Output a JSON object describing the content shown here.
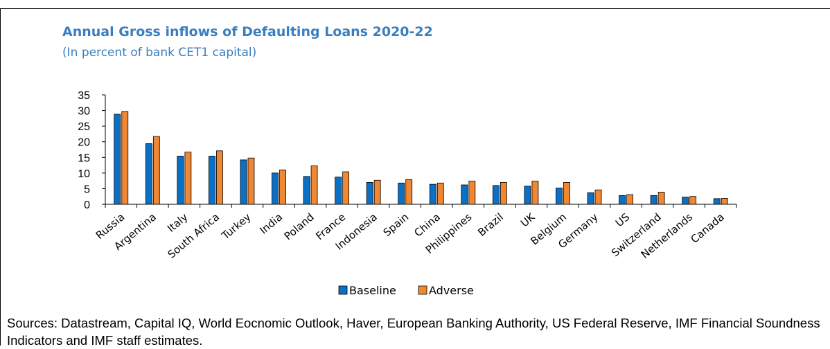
{
  "title": "Annual Gross inflows of Defaulting Loans 2020-22",
  "subtitle": "(In percent of bank CET1 capital)",
  "footnote": "Sources: Datastream, Capital IQ, World Eocnomic Outlook, Haver, European Banking Authority, US Federal Reserve, IMF Financial Soundness Indicators and IMF staff estimates.",
  "colors": {
    "baseline": "#0b6fc4",
    "adverse": "#ef8733",
    "title": "#3a7ebf"
  },
  "chart_data": {
    "type": "bar",
    "title": "Annual Gross inflows of Defaulting Loans 2020-22",
    "subtitle": "(In percent of bank CET1 capital)",
    "xlabel": "",
    "ylabel": "",
    "ylim": [
      0,
      35
    ],
    "yticks": [
      0,
      5,
      10,
      15,
      20,
      25,
      30,
      35
    ],
    "grid": false,
    "legend_position": "bottom-center",
    "categories": [
      "Russia",
      "Argentina",
      "Italy",
      "South Africa",
      "Turkey",
      "India",
      "Poland",
      "France",
      "Indonesia",
      "Spain",
      "China",
      "Philippines",
      "Brazil",
      "UK",
      "Belgium",
      "Germany",
      "US",
      "Switzerland",
      "Netherlands",
      "Canada"
    ],
    "series": [
      {
        "name": "Baseline",
        "color": "#0b6fc4",
        "values": [
          28.8,
          19.4,
          15.4,
          15.4,
          14.2,
          10.0,
          8.9,
          8.7,
          7.0,
          6.8,
          6.4,
          6.2,
          6.0,
          5.8,
          5.2,
          3.7,
          2.8,
          2.8,
          2.3,
          1.8
        ]
      },
      {
        "name": "Adverse",
        "color": "#ef8733",
        "values": [
          29.7,
          21.7,
          16.7,
          17.1,
          14.8,
          11.0,
          12.3,
          10.4,
          7.7,
          7.9,
          6.8,
          7.4,
          7.0,
          7.4,
          7.0,
          4.6,
          3.1,
          3.9,
          2.5,
          1.9
        ]
      }
    ]
  }
}
